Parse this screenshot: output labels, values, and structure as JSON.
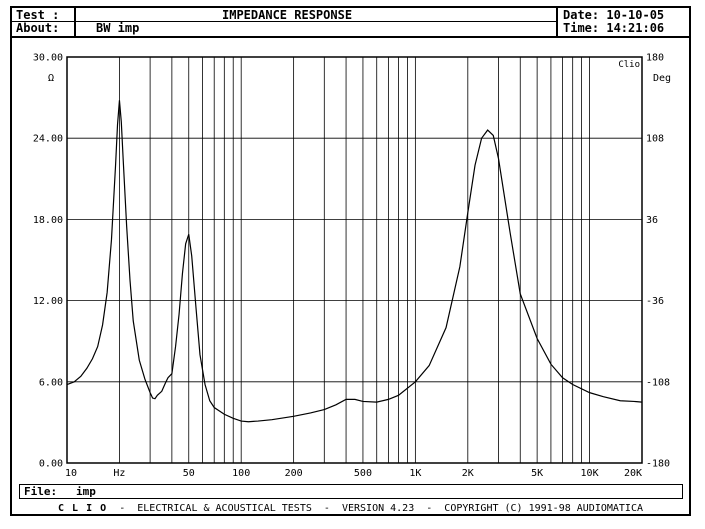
{
  "header": {
    "test_label": "Test :",
    "title": "IMPEDANCE RESPONSE",
    "date_label": "Date: 10-10-05",
    "about_label": "About:",
    "about_value": "BW imp",
    "time_label": "Time: 14:21:06"
  },
  "file": {
    "label": "File:",
    "value": "imp"
  },
  "footer": {
    "brand": "C L I O",
    "text": "ELECTRICAL & ACOUSTICAL TESTS  -  VERSION 4.23  -  COPYRIGHT (C) 1991-98 AUDIOMATICA"
  },
  "chart_data": {
    "type": "line",
    "tag": "Clio",
    "xscale": "log",
    "xlim": [
      10,
      20000
    ],
    "ylim": [
      0,
      30
    ],
    "y2lim": [
      -180,
      180
    ],
    "grid": true,
    "ylabel": "Ω",
    "y2label": "Deg",
    "y_ticks": [
      "0.00",
      "6.00",
      "12.00",
      "18.00",
      "24.00",
      "30.00"
    ],
    "y2_ticks": [
      "-180",
      "-108",
      "-36",
      "36",
      "108",
      "180"
    ],
    "x_ticks": [
      {
        "v": 10,
        "label": "10"
      },
      {
        "v": 20,
        "label": "Hz"
      },
      {
        "v": 50,
        "label": "50"
      },
      {
        "v": 100,
        "label": "100"
      },
      {
        "v": 200,
        "label": "200"
      },
      {
        "v": 500,
        "label": "500"
      },
      {
        "v": 1000,
        "label": "1K"
      },
      {
        "v": 2000,
        "label": "2K"
      },
      {
        "v": 5000,
        "label": "5K"
      },
      {
        "v": 10000,
        "label": "10K"
      },
      {
        "v": 20000,
        "label": "20K"
      }
    ],
    "series": [
      {
        "x": [
          10,
          11,
          12,
          13,
          14,
          15,
          16,
          17,
          18,
          19,
          19.5,
          20,
          20.5,
          21,
          22,
          23,
          24,
          26,
          28,
          30,
          31,
          32,
          33,
          35,
          37,
          38,
          40,
          42,
          44,
          46,
          48,
          50,
          52,
          55,
          58,
          62,
          66,
          70,
          80,
          90,
          100,
          110,
          125,
          150,
          200,
          250,
          300,
          350,
          400,
          450,
          500,
          600,
          700,
          800,
          1000,
          1200,
          1500,
          1800,
          2000,
          2200,
          2400,
          2600,
          2800,
          3000,
          3500,
          4000,
          5000,
          6000,
          7000,
          8000,
          10000,
          12000,
          15000,
          18000,
          20000
        ],
        "y": [
          5.8,
          6.0,
          6.4,
          7.0,
          7.7,
          8.6,
          10.2,
          12.6,
          16.5,
          22.0,
          25.0,
          26.8,
          25.2,
          22.5,
          17.5,
          13.5,
          10.5,
          7.6,
          6.2,
          5.2,
          4.8,
          4.75,
          5.0,
          5.3,
          6.0,
          6.3,
          6.6,
          8.6,
          11.0,
          14.0,
          16.2,
          16.9,
          15.3,
          11.5,
          8.0,
          5.8,
          4.6,
          4.1,
          3.6,
          3.3,
          3.1,
          3.05,
          3.1,
          3.2,
          3.45,
          3.7,
          3.95,
          4.3,
          4.7,
          4.7,
          4.55,
          4.5,
          4.7,
          5.0,
          6.0,
          7.2,
          10.0,
          14.5,
          18.5,
          22.0,
          24.0,
          24.6,
          24.2,
          22.5,
          17.0,
          12.5,
          9.2,
          7.3,
          6.3,
          5.8,
          5.2,
          4.9,
          4.6,
          4.55,
          4.5
        ]
      }
    ]
  }
}
